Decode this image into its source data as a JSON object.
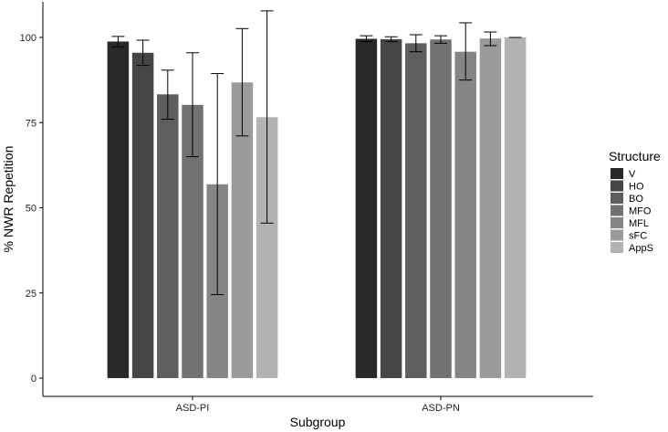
{
  "chart_data": {
    "type": "bar",
    "title": "",
    "xlabel": "Subgroup",
    "ylabel": "% NWR Repetition",
    "ylim": [
      0,
      110
    ],
    "yticks": [
      0,
      25,
      50,
      75,
      100
    ],
    "categories": [
      "ASD-PI",
      "ASD-PN"
    ],
    "legend_title": "Structure",
    "legend_position": "right",
    "series": [
      {
        "name": "V",
        "color": "#292929",
        "values": [
          98.8,
          99.6
        ],
        "err_low": [
          97.2,
          98.8
        ],
        "err_high": [
          100.3,
          100.5
        ]
      },
      {
        "name": "HO",
        "color": "#464646",
        "values": [
          95.5,
          99.5
        ],
        "err_low": [
          91.8,
          98.8
        ],
        "err_high": [
          99.2,
          100.2
        ]
      },
      {
        "name": "BO",
        "color": "#5e5e5e",
        "values": [
          83.3,
          98.3
        ],
        "err_low": [
          76.0,
          95.8
        ],
        "err_high": [
          90.4,
          100.8
        ]
      },
      {
        "name": "MFO",
        "color": "#717171",
        "values": [
          80.2,
          99.4
        ],
        "err_low": [
          65.0,
          98.3
        ],
        "err_high": [
          95.5,
          100.5
        ]
      },
      {
        "name": "MFL",
        "color": "#858585",
        "values": [
          56.9,
          95.8
        ],
        "err_low": [
          24.5,
          87.5
        ],
        "err_high": [
          89.4,
          104.3
        ]
      },
      {
        "name": "sFC",
        "color": "#9a9a9a",
        "values": [
          86.8,
          99.7
        ],
        "err_low": [
          71.1,
          97.6
        ],
        "err_high": [
          102.6,
          101.6
        ]
      },
      {
        "name": "AppS",
        "color": "#b2b2b2",
        "values": [
          76.6,
          100.0
        ],
        "err_low": [
          45.5,
          100.0
        ],
        "err_high": [
          107.8,
          100.0
        ]
      }
    ]
  }
}
